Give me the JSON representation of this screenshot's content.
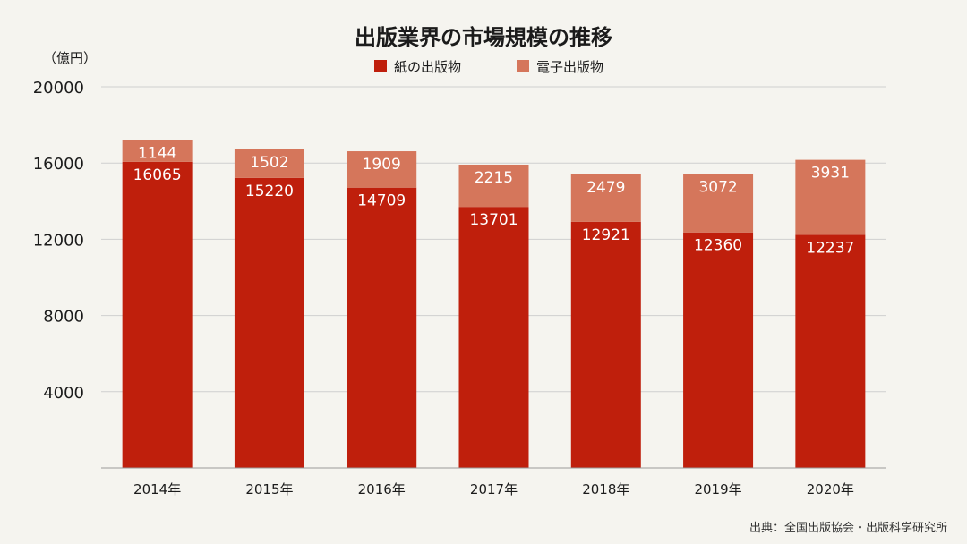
{
  "chart_data": {
    "type": "bar",
    "stacked": true,
    "title": "出版業界の市場規模の推移",
    "unit_label": "（億円）",
    "categories": [
      "2014年",
      "2015年",
      "2016年",
      "2017年",
      "2018年",
      "2019年",
      "2020年"
    ],
    "series": [
      {
        "name": "紙の出版物",
        "color": "#bf1f0c",
        "values": [
          16065,
          15220,
          14709,
          13701,
          12921,
          12360,
          12237
        ]
      },
      {
        "name": "電子出版物",
        "color": "#d5765b",
        "values": [
          1144,
          1502,
          1909,
          2215,
          2479,
          3072,
          3931
        ]
      }
    ],
    "yticks": [
      4000,
      8000,
      12000,
      16000,
      20000
    ],
    "ylim": [
      0,
      20000
    ],
    "grid": true,
    "legend_position": "top-center",
    "source": "出典：全国出版協会・出版科学研究所"
  }
}
